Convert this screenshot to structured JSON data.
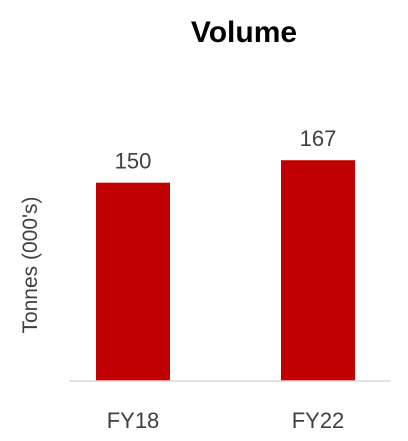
{
  "chart_data": {
    "type": "bar",
    "title": "Volume",
    "ylabel": "Tonnes (000's)",
    "xlabel": "",
    "categories": [
      "FY18",
      "FY22"
    ],
    "values": [
      150,
      167
    ],
    "data_labels": [
      "150",
      "167"
    ],
    "ylim": [
      0,
      180
    ],
    "bar_color": "#c00000",
    "axis_color": "#d9d9d9",
    "grid": false,
    "legend": "none"
  }
}
